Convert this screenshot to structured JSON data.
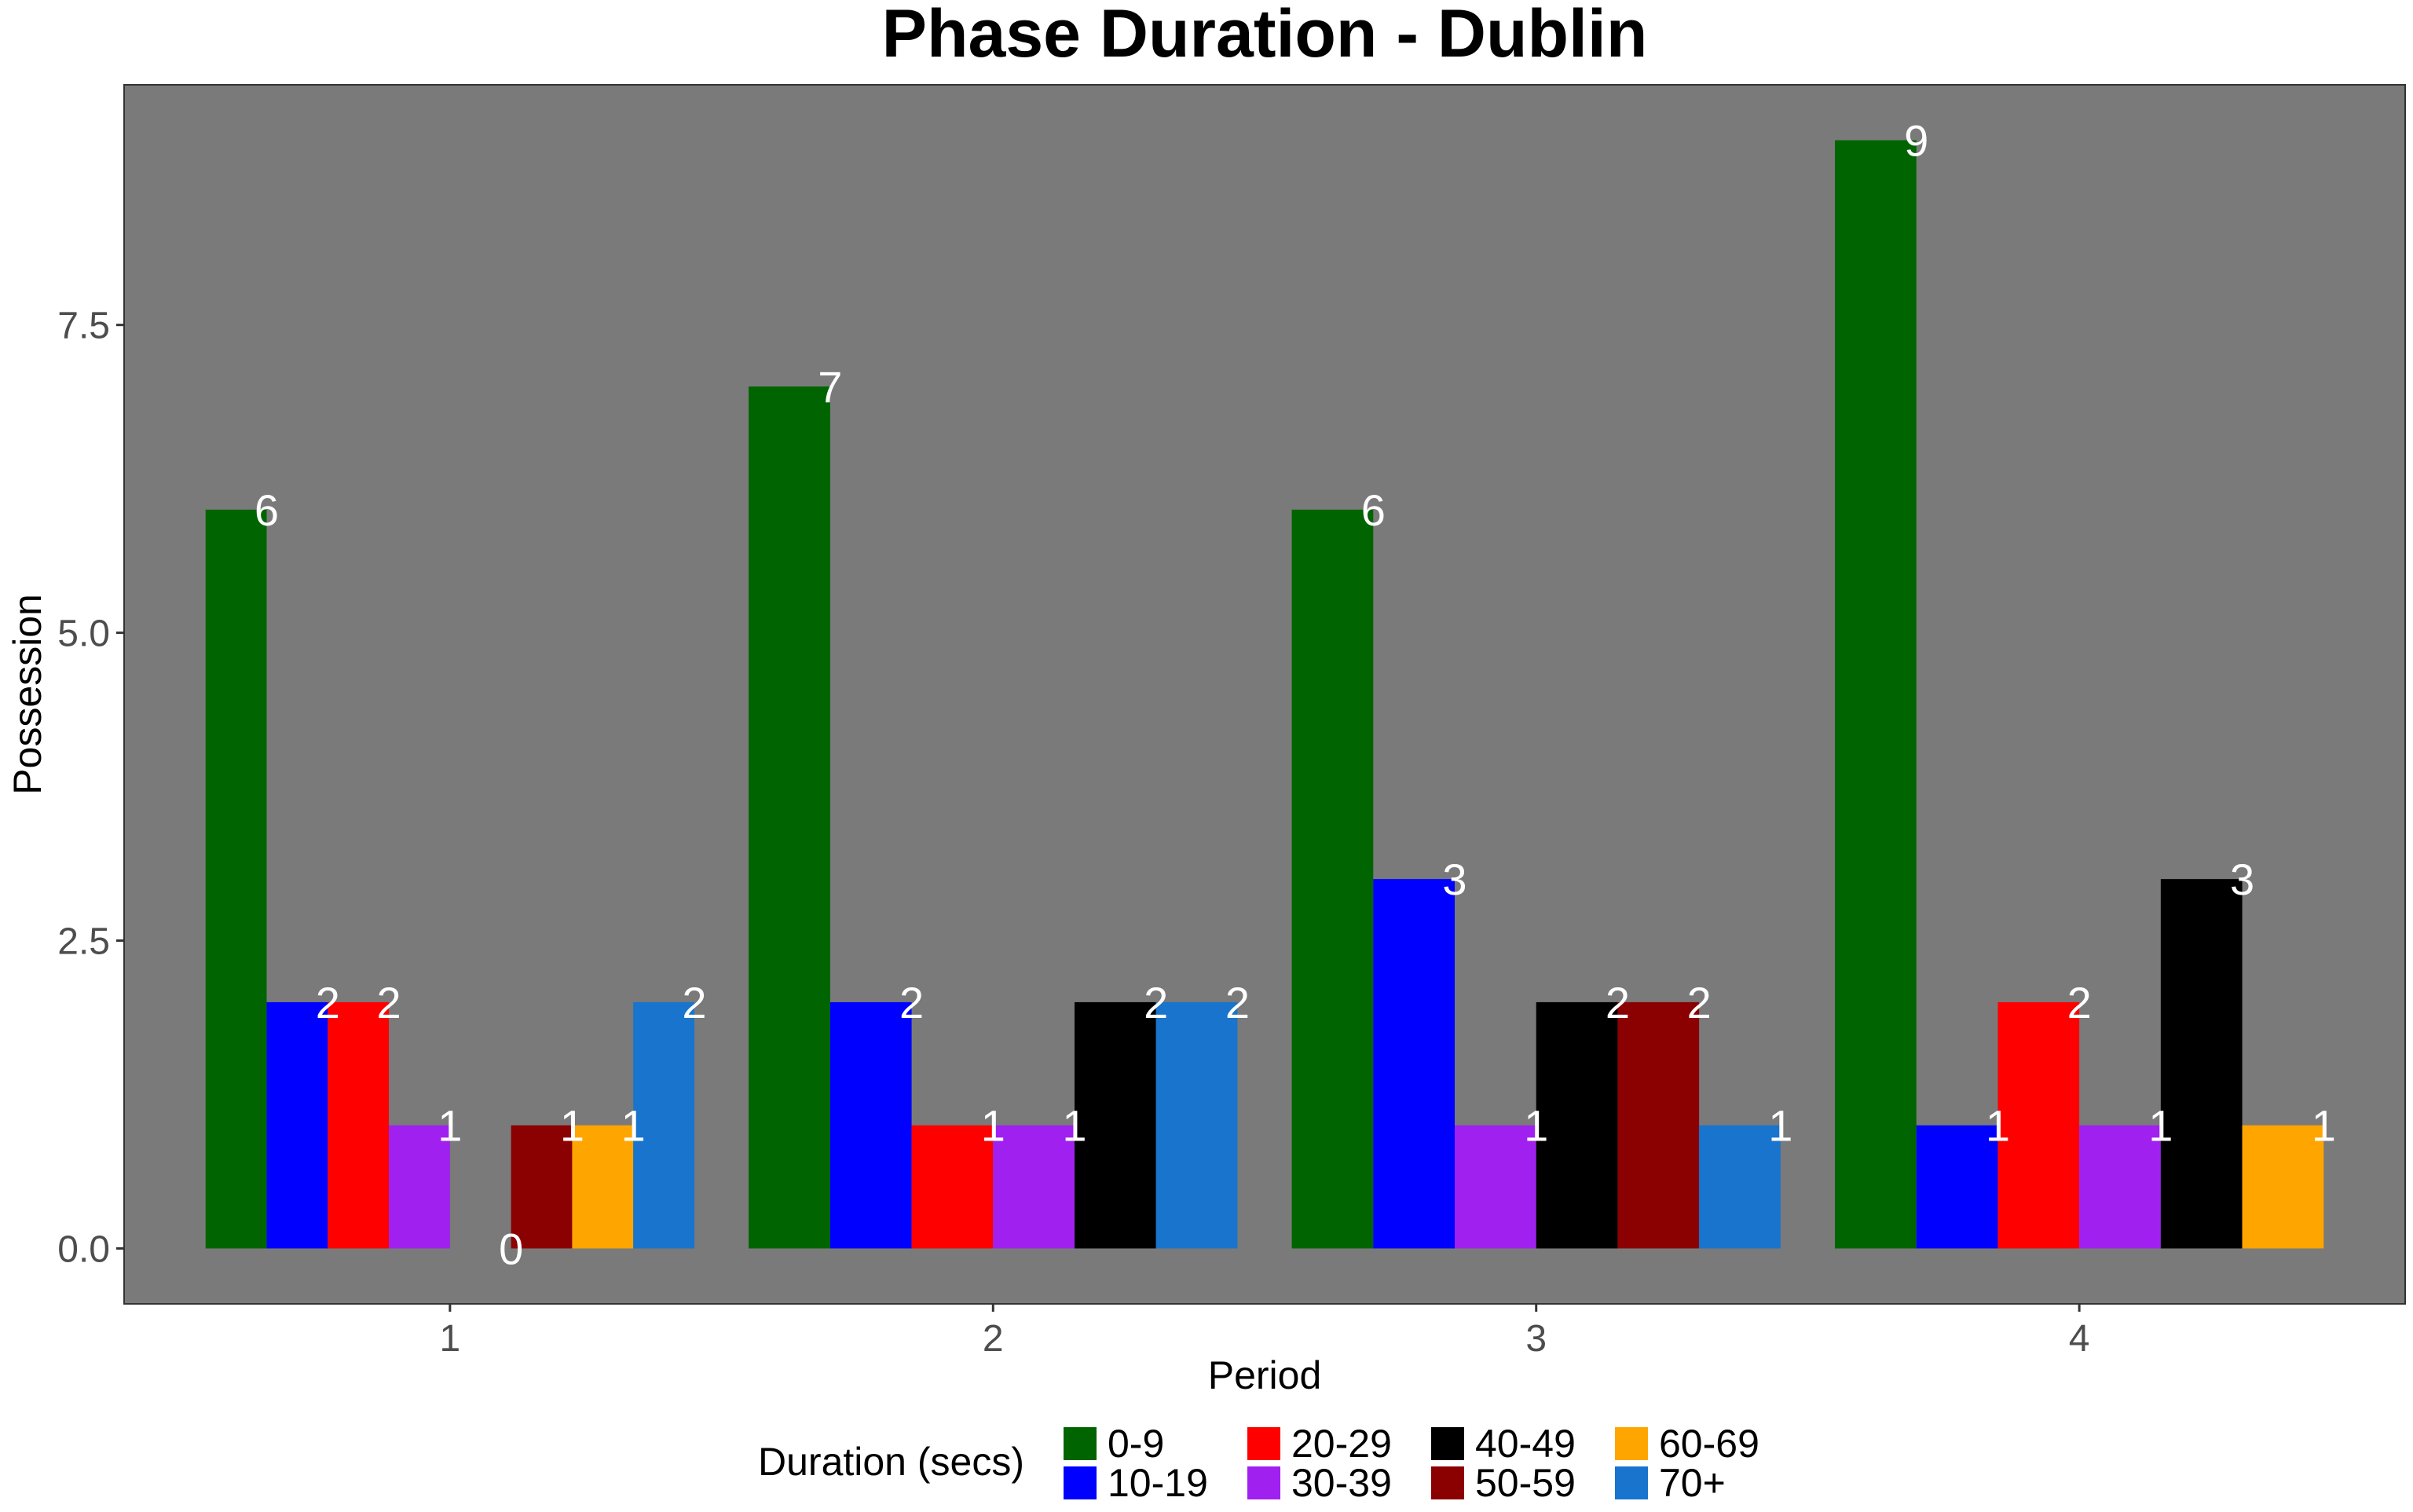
{
  "chart_data": {
    "type": "bar",
    "title": "Phase Duration - Dublin",
    "xlabel": "Period",
    "ylabel": "Possession",
    "categories": [
      "1",
      "2",
      "3",
      "4"
    ],
    "ylim": [
      -0.45,
      9.45
    ],
    "yticks": [
      0.0,
      2.5,
      5.0,
      7.5
    ],
    "ytick_labels": [
      "0.0",
      "2.5",
      "5.0",
      "7.5"
    ],
    "grid": false,
    "panel_color": "#7a7a7a",
    "legend": {
      "title": "Duration (secs)",
      "position": "bottom"
    },
    "series": [
      {
        "name": "0-9",
        "color": "#006400",
        "values": [
          6,
          7,
          6,
          9
        ]
      },
      {
        "name": "10-19",
        "color": "#0000ff",
        "values": [
          2,
          2,
          3,
          1
        ]
      },
      {
        "name": "20-29",
        "color": "#ff0000",
        "values": [
          2,
          1,
          0,
          2
        ]
      },
      {
        "name": "30-39",
        "color": "#a020f0",
        "values": [
          1,
          1,
          1,
          1
        ]
      },
      {
        "name": "40-49",
        "color": "#000000",
        "values": [
          0,
          2,
          2,
          3
        ]
      },
      {
        "name": "50-59",
        "color": "#8b0000",
        "values": [
          1,
          0,
          2,
          0
        ]
      },
      {
        "name": "60-69",
        "color": "#ffa500",
        "values": [
          1,
          0,
          0,
          1
        ]
      },
      {
        "name": "70+",
        "color": "#1874cd",
        "values": [
          2,
          2,
          1,
          0
        ]
      }
    ],
    "present": [
      [
        true,
        true,
        true,
        true
      ],
      [
        true,
        true,
        true,
        true
      ],
      [
        true,
        true,
        false,
        true
      ],
      [
        true,
        true,
        true,
        true
      ],
      [
        true,
        true,
        true,
        true
      ],
      [
        true,
        false,
        true,
        false
      ],
      [
        true,
        false,
        false,
        true
      ],
      [
        true,
        true,
        true,
        false
      ]
    ]
  }
}
